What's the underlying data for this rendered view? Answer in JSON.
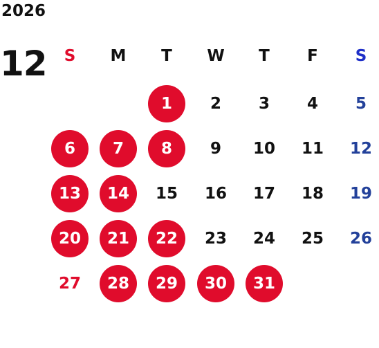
{
  "year": "2026",
  "month": "12",
  "colors": {
    "text": "#111111",
    "highlight": "#E00C2C",
    "sunday": "#E00C2C",
    "saturday_header": "#1E2FC8",
    "saturday": "#23419A",
    "highlight_text": "#FFFFFF"
  },
  "weekdays": [
    {
      "label": "S",
      "kind": "sun"
    },
    {
      "label": "M",
      "kind": "week"
    },
    {
      "label": "T",
      "kind": "week"
    },
    {
      "label": "W",
      "kind": "week"
    },
    {
      "label": "T",
      "kind": "week"
    },
    {
      "label": "F",
      "kind": "week"
    },
    {
      "label": "S",
      "kind": "sat"
    }
  ],
  "weeks": [
    [
      null,
      null,
      {
        "d": "1",
        "hl": true
      },
      {
        "d": "2",
        "hl": false
      },
      {
        "d": "3",
        "hl": false
      },
      {
        "d": "4",
        "hl": false
      },
      {
        "d": "5",
        "hl": false
      }
    ],
    [
      {
        "d": "6",
        "hl": true
      },
      {
        "d": "7",
        "hl": true
      },
      {
        "d": "8",
        "hl": true
      },
      {
        "d": "9",
        "hl": false
      },
      {
        "d": "10",
        "hl": false
      },
      {
        "d": "11",
        "hl": false
      },
      {
        "d": "12",
        "hl": false
      }
    ],
    [
      {
        "d": "13",
        "hl": true
      },
      {
        "d": "14",
        "hl": true
      },
      {
        "d": "15",
        "hl": false
      },
      {
        "d": "16",
        "hl": false
      },
      {
        "d": "17",
        "hl": false
      },
      {
        "d": "18",
        "hl": false
      },
      {
        "d": "19",
        "hl": false
      }
    ],
    [
      {
        "d": "20",
        "hl": true
      },
      {
        "d": "21",
        "hl": true
      },
      {
        "d": "22",
        "hl": true
      },
      {
        "d": "23",
        "hl": false
      },
      {
        "d": "24",
        "hl": false
      },
      {
        "d": "25",
        "hl": false
      },
      {
        "d": "26",
        "hl": false
      }
    ],
    [
      {
        "d": "27",
        "hl": false
      },
      {
        "d": "28",
        "hl": true
      },
      {
        "d": "29",
        "hl": true
      },
      {
        "d": "30",
        "hl": true
      },
      {
        "d": "31",
        "hl": true
      },
      null,
      null
    ]
  ]
}
